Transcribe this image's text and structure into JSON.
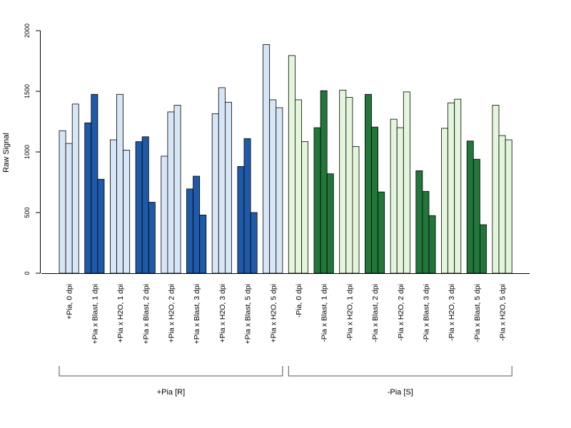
{
  "chart_data": {
    "type": "bar",
    "ylabel": "Raw Signal",
    "ylim": [
      0,
      2000
    ],
    "yticks": [
      0,
      500,
      1000,
      1500,
      2000
    ],
    "grid": false,
    "legend": "none",
    "colors": {
      "pia_pos_light": "#d7e6f6",
      "pia_pos_dark": "#1e5aa8",
      "pia_neg_light": "#e3f6db",
      "pia_neg_dark": "#22763a",
      "bar_edge": "#000000"
    },
    "categories": [
      {
        "label": "+Pia, 0 dpi",
        "shade": "pia_pos_light",
        "values": [
          1175,
          1070,
          1395
        ]
      },
      {
        "label": "+Pia x Blast, 1 dpi",
        "shade": "pia_pos_dark",
        "values": [
          1240,
          1475,
          775
        ]
      },
      {
        "label": "+Pia x H2O, 1 dpi",
        "shade": "pia_pos_light",
        "values": [
          1100,
          1475,
          1015
        ]
      },
      {
        "label": "+Pia x Blast, 2 dpi",
        "shade": "pia_pos_dark",
        "values": [
          1085,
          1125,
          585
        ]
      },
      {
        "label": "+Pia x H2O, 2 dpi",
        "shade": "pia_pos_light",
        "values": [
          965,
          1330,
          1385
        ]
      },
      {
        "label": "+Pia x Blast, 3 dpi",
        "shade": "pia_pos_dark",
        "values": [
          695,
          800,
          480
        ]
      },
      {
        "label": "+Pia x H2O, 3 dpi",
        "shade": "pia_pos_light",
        "values": [
          1315,
          1530,
          1410
        ]
      },
      {
        "label": "+Pia x Blast, 5 dpi",
        "shade": "pia_pos_dark",
        "values": [
          880,
          1110,
          500
        ]
      },
      {
        "label": "+Pia x H2O, 5 dpi",
        "shade": "pia_pos_light",
        "values": [
          1885,
          1430,
          1365
        ]
      },
      {
        "label": "-Pia, 0 dpi",
        "shade": "pia_neg_light",
        "values": [
          1795,
          1430,
          1085
        ]
      },
      {
        "label": "-Pia x Blast, 1 dpi",
        "shade": "pia_neg_dark",
        "values": [
          1200,
          1505,
          820
        ]
      },
      {
        "label": "-Pia x H2O, 1 dpi",
        "shade": "pia_neg_light",
        "values": [
          1510,
          1450,
          1045
        ]
      },
      {
        "label": "-Pia x Blast, 2 dpi",
        "shade": "pia_neg_dark",
        "values": [
          1475,
          1205,
          670
        ]
      },
      {
        "label": "-Pia x H2O, 2 dpi",
        "shade": "pia_neg_light",
        "values": [
          1270,
          1200,
          1495
        ]
      },
      {
        "label": "-Pia x Blast, 3 dpi",
        "shade": "pia_neg_dark",
        "values": [
          845,
          675,
          475
        ]
      },
      {
        "label": "-Pia x H2O, 3 dpi",
        "shade": "pia_neg_light",
        "values": [
          1195,
          1405,
          1435
        ]
      },
      {
        "label": "-Pia x Blast, 5 dpi",
        "shade": "pia_neg_dark",
        "values": [
          1090,
          940,
          400
        ]
      },
      {
        "label": "-Pia x H2O, 5 dpi",
        "shade": "pia_neg_light",
        "values": [
          1385,
          1135,
          1100
        ]
      }
    ],
    "groups": [
      {
        "label": "+Pia [R]",
        "first_category": 0,
        "last_category": 8
      },
      {
        "label": "-Pia [S]",
        "first_category": 9,
        "last_category": 17
      }
    ]
  }
}
